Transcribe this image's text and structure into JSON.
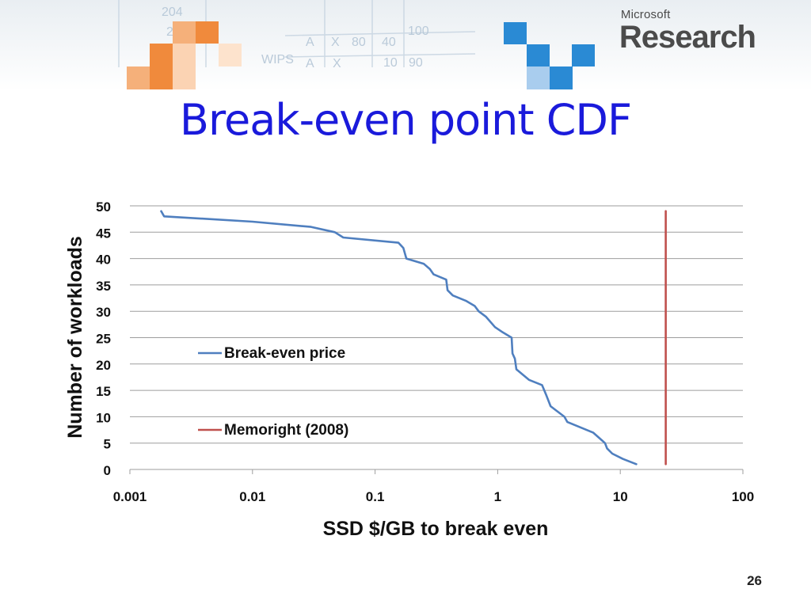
{
  "slide": {
    "title": "Break-even point CDF",
    "page_number": "26",
    "logo": {
      "company": "Microsoft",
      "division": "Research"
    }
  },
  "colors": {
    "title": "#1a1adb",
    "series_break_even": "#4f7fbf",
    "series_memoright": "#c0504d",
    "grid": "#9e9e9e",
    "banner_orange": "#f08a3c",
    "banner_blue": "#2a8ad4"
  },
  "chart_data": {
    "type": "line",
    "x_scale": "log",
    "xlim": [
      0.001,
      100
    ],
    "ylim": [
      0,
      50
    ],
    "xlabel": "SSD $/GB to break even",
    "ylabel": "Number of workloads",
    "x_ticks": [
      "0.001",
      "0.01",
      "0.1",
      "1",
      "10",
      "100"
    ],
    "y_ticks": [
      "0",
      "5",
      "10",
      "15",
      "20",
      "25",
      "30",
      "35",
      "40",
      "45",
      "50"
    ],
    "grid": "horizontal",
    "series": [
      {
        "name": "Break-even price",
        "color": "#4f7fbf",
        "points": [
          [
            0.0018,
            49
          ],
          [
            0.0019,
            48
          ],
          [
            0.01,
            47
          ],
          [
            0.03,
            46
          ],
          [
            0.047,
            45
          ],
          [
            0.055,
            44
          ],
          [
            0.155,
            43
          ],
          [
            0.17,
            42
          ],
          [
            0.18,
            40
          ],
          [
            0.25,
            39
          ],
          [
            0.28,
            38
          ],
          [
            0.3,
            37
          ],
          [
            0.38,
            36
          ],
          [
            0.39,
            34
          ],
          [
            0.43,
            33
          ],
          [
            0.55,
            32
          ],
          [
            0.65,
            31
          ],
          [
            0.7,
            30
          ],
          [
            0.8,
            29
          ],
          [
            0.95,
            27
          ],
          [
            1.1,
            26
          ],
          [
            1.3,
            25
          ],
          [
            1.32,
            22
          ],
          [
            1.38,
            21
          ],
          [
            1.42,
            19
          ],
          [
            1.8,
            17
          ],
          [
            2.3,
            16
          ],
          [
            2.5,
            14
          ],
          [
            2.7,
            12
          ],
          [
            3.5,
            10
          ],
          [
            3.7,
            9
          ],
          [
            6,
            7
          ],
          [
            7.5,
            5
          ],
          [
            7.8,
            4
          ],
          [
            8.6,
            3
          ],
          [
            10.5,
            2
          ],
          [
            13.5,
            1
          ]
        ]
      },
      {
        "name": "Memoright (2008)",
        "color": "#c0504d",
        "points": [
          [
            23.5,
            1
          ],
          [
            23.5,
            49
          ]
        ]
      }
    ],
    "legend": [
      "Break-even price",
      "Memoright (2008)"
    ],
    "legend_position": "inside-left"
  }
}
